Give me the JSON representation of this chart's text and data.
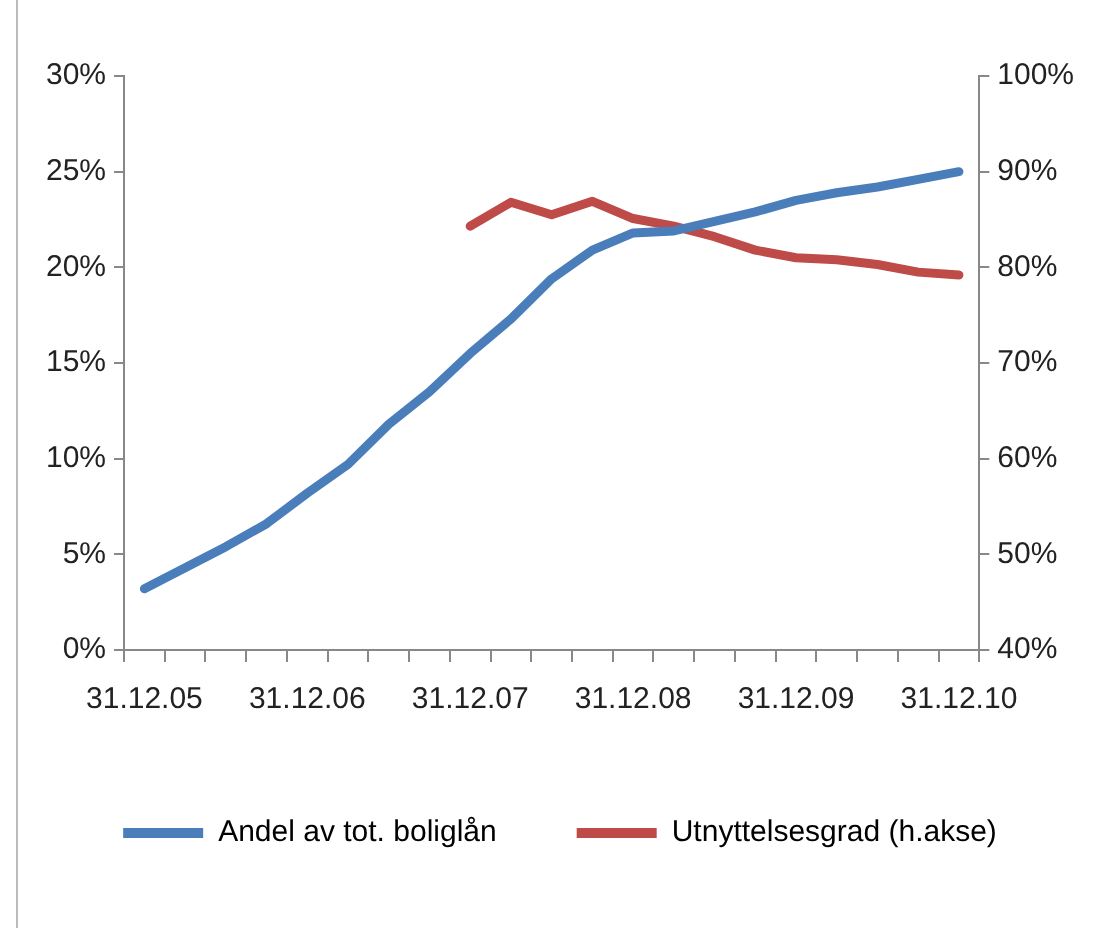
{
  "chart_data": {
    "type": "line",
    "categories": [
      "31.12.05",
      null,
      null,
      null,
      "31.12.06",
      null,
      null,
      null,
      "31.12.07",
      null,
      null,
      null,
      "31.12.08",
      null,
      null,
      null,
      "31.12.09",
      null,
      null,
      null,
      "31.12.10"
    ],
    "series": [
      {
        "name": "Andel av tot. boliglån",
        "color": "#4a7ebb",
        "values": [
          3.2,
          4.3,
          5.4,
          6.6,
          8.2,
          9.7,
          11.8,
          13.5,
          15.5,
          17.3,
          19.4,
          20.9,
          21.8,
          21.9,
          22.4,
          22.9,
          23.5,
          23.9,
          24.2,
          24.6,
          25.0
        ]
      },
      {
        "name": "Utnyttelsesgrad (h.akse)",
        "color": "#be4b48",
        "axis": "y2",
        "values": [
          null,
          null,
          null,
          null,
          null,
          null,
          null,
          null,
          84.3,
          86.8,
          85.5,
          86.9,
          85.1,
          84.3,
          83.2,
          81.8,
          81.0,
          80.8,
          80.3,
          79.5,
          79.2
        ]
      }
    ],
    "ylim": [
      0,
      30
    ],
    "yticks": [
      {
        "value": 0,
        "label": "0%"
      },
      {
        "value": 5,
        "label": "5%"
      },
      {
        "value": 10,
        "label": "10%"
      },
      {
        "value": 15,
        "label": "15%"
      },
      {
        "value": 20,
        "label": "20%"
      },
      {
        "value": 25,
        "label": "25%"
      },
      {
        "value": 30,
        "label": "30%"
      }
    ],
    "y2lim": [
      40,
      100
    ],
    "y2ticks": [
      {
        "value": 40,
        "label": "40%"
      },
      {
        "value": 50,
        "label": "50%"
      },
      {
        "value": 60,
        "label": "60%"
      },
      {
        "value": 70,
        "label": "70%"
      },
      {
        "value": 80,
        "label": "80%"
      },
      {
        "value": 90,
        "label": "90%"
      },
      {
        "value": 100,
        "label": "100%"
      }
    ],
    "grid": false,
    "legend": "bottom",
    "marker": "none",
    "line_style": "solid"
  }
}
